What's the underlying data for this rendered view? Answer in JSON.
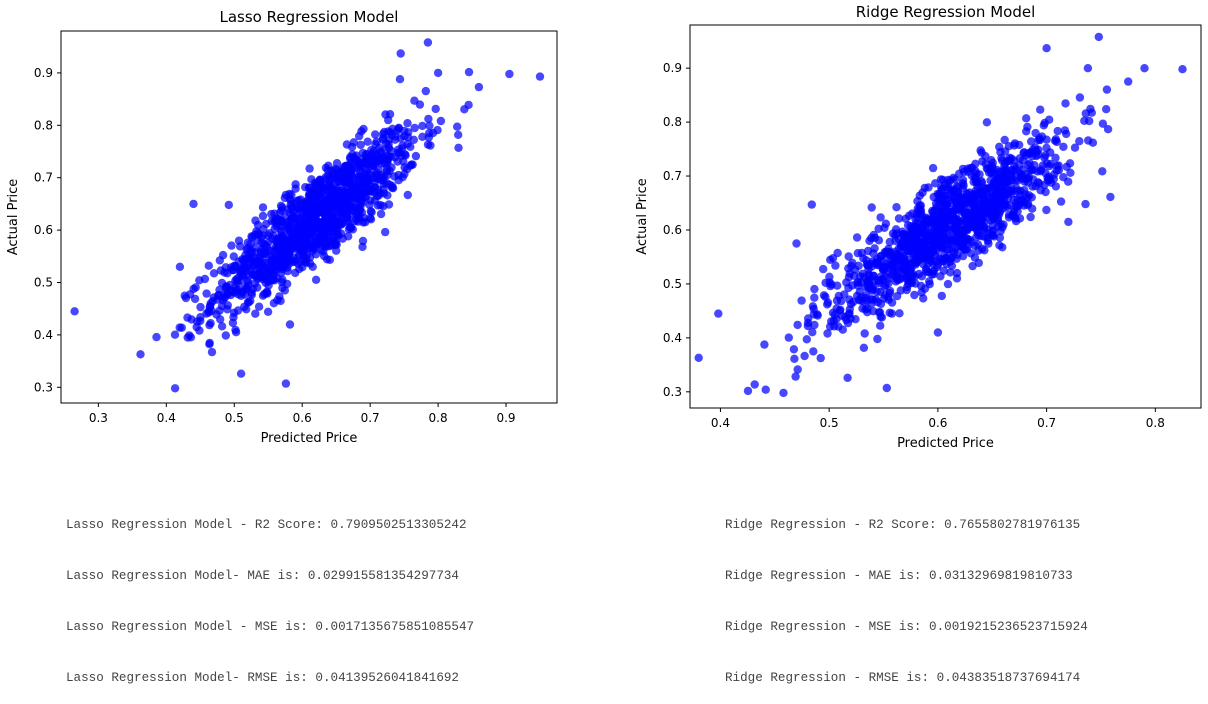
{
  "colors": {
    "point": "#0000ff",
    "axis": "#000000",
    "text": "#444444"
  },
  "chart_data": [
    {
      "type": "scatter",
      "title": "Lasso Regression Model",
      "xlabel": "Predicted Price",
      "ylabel": "Actual Price",
      "xlim": [
        0.245,
        0.975
      ],
      "ylim": [
        0.27,
        0.98
      ],
      "xticks": [
        "0.3",
        "0.4",
        "0.5",
        "0.6",
        "0.7",
        "0.8",
        "0.9"
      ],
      "yticks": [
        "0.3",
        "0.4",
        "0.5",
        "0.6",
        "0.7",
        "0.8",
        "0.9"
      ],
      "trend": {
        "slope": 1.0,
        "intercept": 0.0,
        "x_center": 0.62,
        "x_sd": 0.075,
        "noise": 0.042,
        "n": 1200,
        "x_min": 0.36,
        "x_max": 0.88
      },
      "outliers": [
        [
          0.265,
          0.445
        ],
        [
          0.362,
          0.363
        ],
        [
          0.413,
          0.298
        ],
        [
          0.576,
          0.307
        ],
        [
          0.51,
          0.326
        ],
        [
          0.745,
          0.937
        ],
        [
          0.785,
          0.958
        ],
        [
          0.905,
          0.898
        ],
        [
          0.95,
          0.893
        ],
        [
          0.86,
          0.873
        ],
        [
          0.8,
          0.9
        ],
        [
          0.83,
          0.757
        ],
        [
          0.42,
          0.53
        ],
        [
          0.44,
          0.65
        ],
        [
          0.492,
          0.648
        ]
      ]
    },
    {
      "type": "scatter",
      "title": "Ridge Regression Model",
      "xlabel": "Predicted Price",
      "ylabel": "Actual Price",
      "xlim": [
        0.372,
        0.842
      ],
      "ylim": [
        0.27,
        0.98
      ],
      "xticks": [
        "0.4",
        "0.5",
        "0.6",
        "0.7",
        "0.8"
      ],
      "yticks": [
        "0.3",
        "0.4",
        "0.5",
        "0.6",
        "0.7",
        "0.8",
        "0.9"
      ],
      "trend": {
        "slope": 1.32,
        "intercept": -0.2,
        "x_center": 0.61,
        "x_sd": 0.055,
        "noise": 0.042,
        "n": 1200,
        "x_min": 0.41,
        "x_max": 0.8
      },
      "outliers": [
        [
          0.38,
          0.363
        ],
        [
          0.398,
          0.445
        ],
        [
          0.458,
          0.298
        ],
        [
          0.553,
          0.307
        ],
        [
          0.517,
          0.326
        ],
        [
          0.7,
          0.937
        ],
        [
          0.748,
          0.958
        ],
        [
          0.825,
          0.898
        ],
        [
          0.79,
          0.9
        ],
        [
          0.738,
          0.9
        ],
        [
          0.775,
          0.875
        ],
        [
          0.72,
          0.615
        ],
        [
          0.47,
          0.575
        ],
        [
          0.484,
          0.647
        ],
        [
          0.6,
          0.41
        ]
      ]
    }
  ],
  "metrics": {
    "lasso": [
      "Lasso Regression Model - R2 Score: 0.7909502513305242",
      "Lasso Regression Model- MAE is: 0.029915581354297734",
      "Lasso Regression Model - MSE is: 0.0017135675851085547",
      "Lasso Regression Model- RMSE is: 0.04139526041841692"
    ],
    "ridge": [
      "Ridge Regression - R2 Score: 0.7655802781976135",
      "Ridge Regression - MAE is: 0.03132969819810733",
      "Ridge Regression - MSE is: 0.0019215236523715924",
      "Ridge Regression - RMSE is: 0.04383518737694174"
    ]
  }
}
